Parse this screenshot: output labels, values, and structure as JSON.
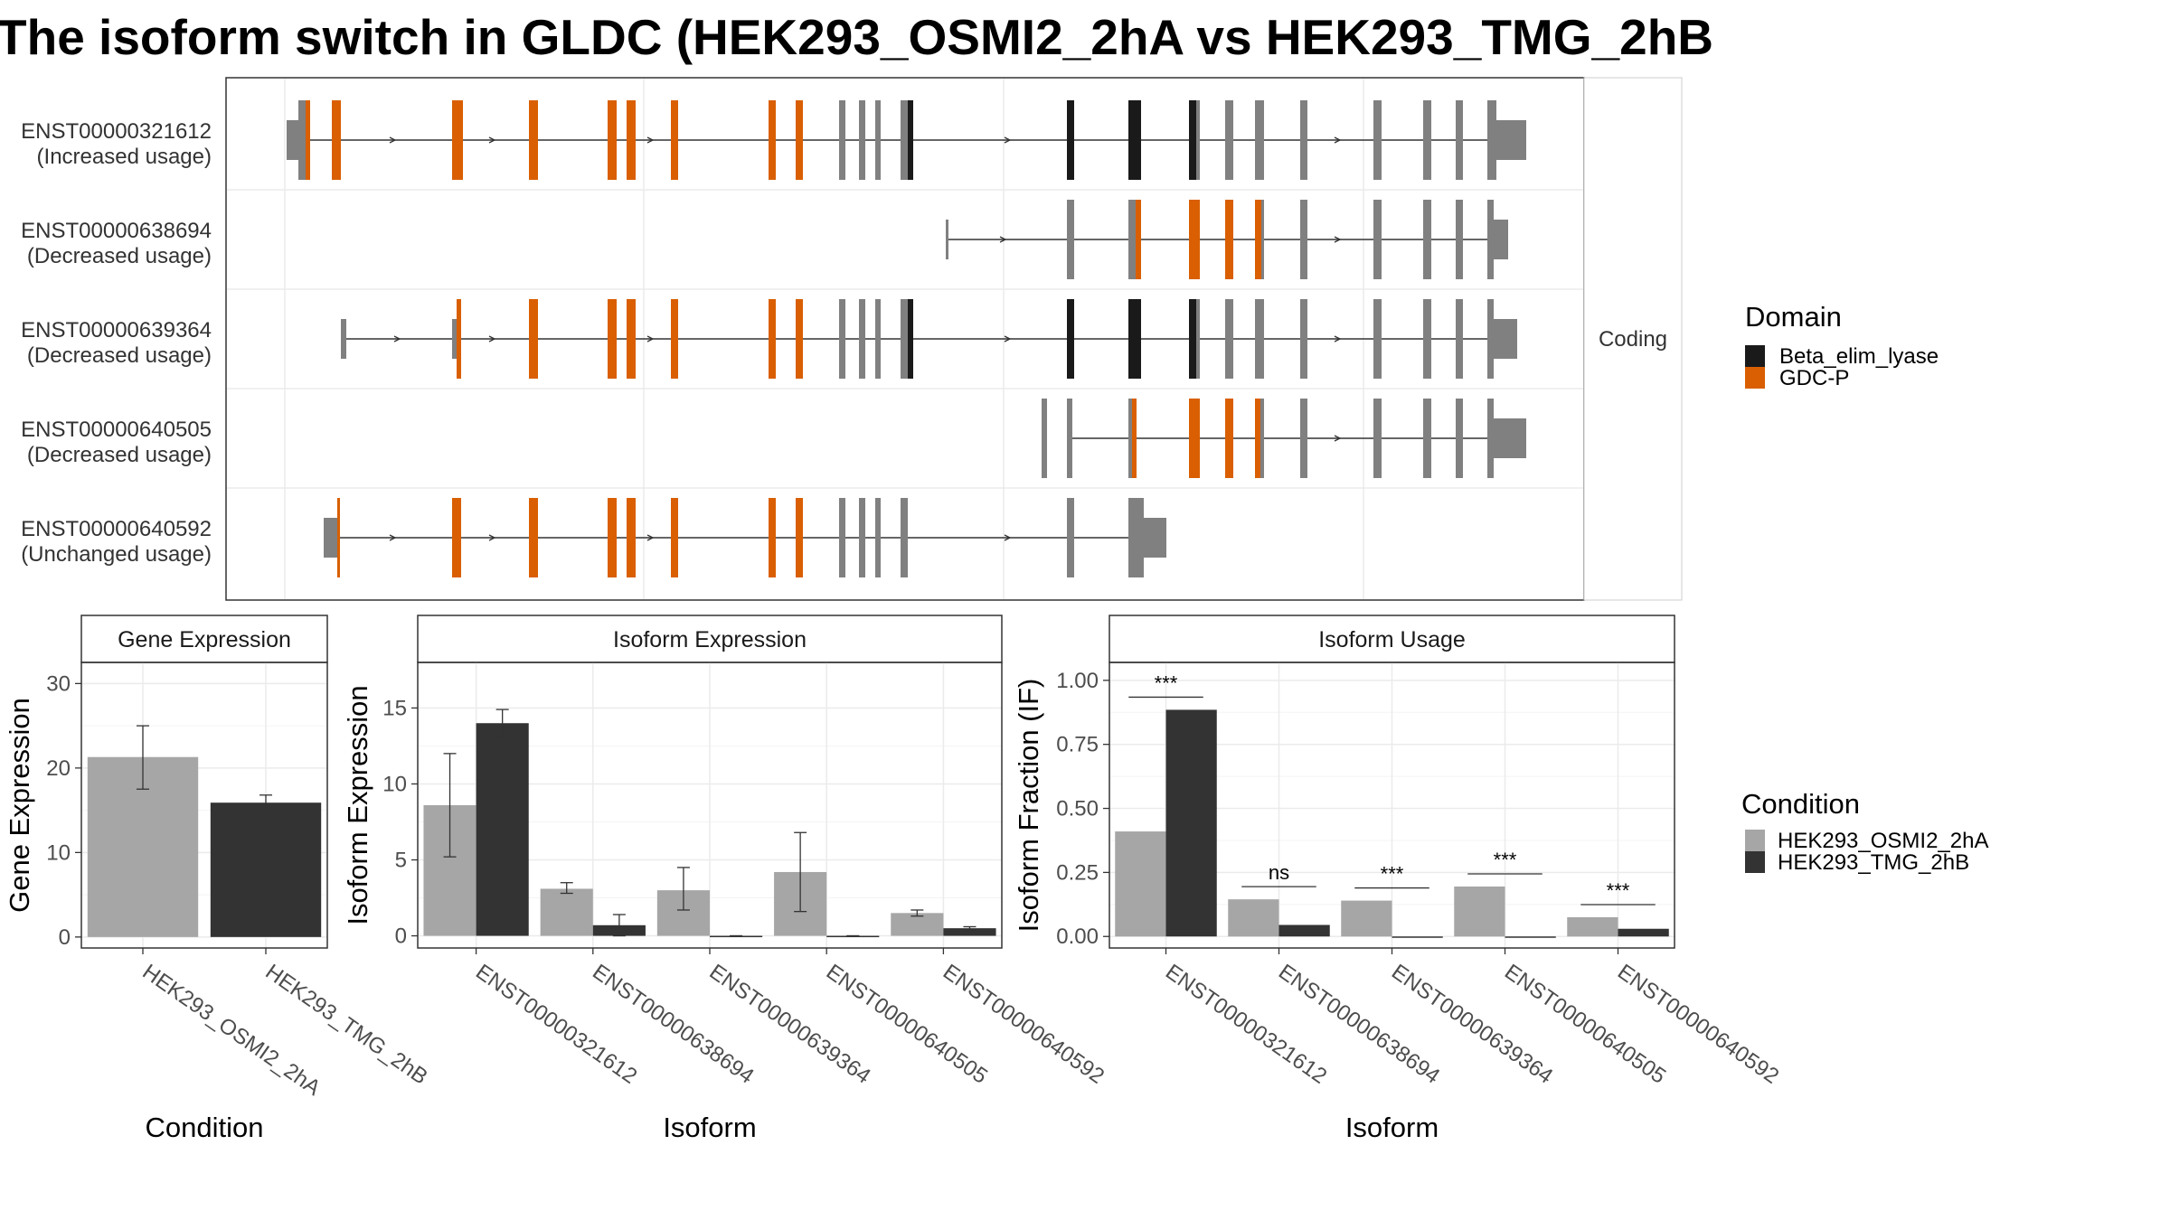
{
  "chart_data": [
    {
      "type": "gene-structure",
      "title": "The isoform switch in GLDC (HEK293_OSMI2_2hA vs HEK293_TMG_2hB",
      "facet_label": "Coding",
      "isoforms": [
        {
          "id": "ENST00000321612",
          "status": "(Increased usage)"
        },
        {
          "id": "ENST00000638694",
          "status": "(Decreased usage)"
        },
        {
          "id": "ENST00000639364",
          "status": "(Decreased usage)"
        },
        {
          "id": "ENST00000640505",
          "status": "(Decreased usage)"
        },
        {
          "id": "ENST00000640592",
          "status": "(Unchanged usage)"
        }
      ],
      "legend": {
        "title": "Domain",
        "items": [
          {
            "name": "Beta_elim_lyase",
            "color": "#1a1a1a"
          },
          {
            "name": "GDC-P",
            "color": "#d95f02"
          }
        ]
      },
      "colors": {
        "exon": "#808080",
        "utr": "#808080",
        "domain_beta": "#1a1a1a",
        "domain_gdcp": "#d95f02",
        "intron": "#333333"
      }
    },
    {
      "type": "bar",
      "panel_title": "Gene Expression",
      "xlabel": "Condition",
      "ylabel": "Gene Expression",
      "categories": [
        "HEK293_OSMI2_2hA",
        "HEK293_TMG_2hB"
      ],
      "values": [
        21.3,
        15.9
      ],
      "errors": [
        [
          17.5,
          25.0
        ],
        [
          15.0,
          16.8
        ]
      ],
      "colors": [
        "#a6a6a6",
        "#333333"
      ],
      "ylim": [
        -1.3,
        32.5
      ],
      "yticks": [
        "0",
        "10",
        "20",
        "30"
      ]
    },
    {
      "type": "bar",
      "panel_title": "Isoform Expression",
      "xlabel": "Isoform",
      "ylabel": "Isoform Expression",
      "categories": [
        "ENST00000321612",
        "ENST00000638694",
        "ENST00000639364",
        "ENST00000640505",
        "ENST00000640592"
      ],
      "series": [
        {
          "name": "HEK293_OSMI2_2hA",
          "color": "#a6a6a6",
          "values": [
            8.6,
            3.1,
            3.0,
            4.2,
            1.5
          ],
          "errors": [
            [
              5.2,
              12.0
            ],
            [
              2.8,
              3.5
            ],
            [
              1.7,
              4.5
            ],
            [
              1.6,
              6.8
            ],
            [
              1.3,
              1.7
            ]
          ]
        },
        {
          "name": "HEK293_TMG_2hB",
          "color": "#333333",
          "values": [
            14.0,
            0.7,
            0.0,
            0.0,
            0.5
          ],
          "errors": [
            [
              13.1,
              14.9
            ],
            [
              0.0,
              1.4
            ],
            [
              0.0,
              0.0
            ],
            [
              0.0,
              0.0
            ],
            [
              0.4,
              0.6
            ]
          ]
        }
      ],
      "ylim": [
        -0.8,
        18.0
      ],
      "yticks": [
        "0",
        "5",
        "10",
        "15"
      ]
    },
    {
      "type": "bar",
      "panel_title": "Isoform Usage",
      "xlabel": "Isoform",
      "ylabel": "Isoform Fraction (IF)",
      "categories": [
        "ENST00000321612",
        "ENST00000638694",
        "ENST00000639364",
        "ENST00000640505",
        "ENST00000640592"
      ],
      "series": [
        {
          "name": "HEK293_OSMI2_2hA",
          "color": "#a6a6a6",
          "values": [
            0.41,
            0.145,
            0.14,
            0.195,
            0.075
          ]
        },
        {
          "name": "HEK293_TMG_2hB",
          "color": "#333333",
          "values": [
            0.885,
            0.045,
            0.0,
            0.0,
            0.03
          ]
        }
      ],
      "significance": [
        "***",
        "ns",
        "***",
        "***",
        "***"
      ],
      "ylim": [
        -0.045,
        1.07
      ],
      "yticks": [
        "0.00",
        "0.25",
        "0.50",
        "0.75",
        "1.00"
      ],
      "legend": {
        "title": "Condition",
        "items": [
          "HEK293_OSMI2_2hA",
          "HEK293_TMG_2hB"
        ]
      }
    }
  ]
}
